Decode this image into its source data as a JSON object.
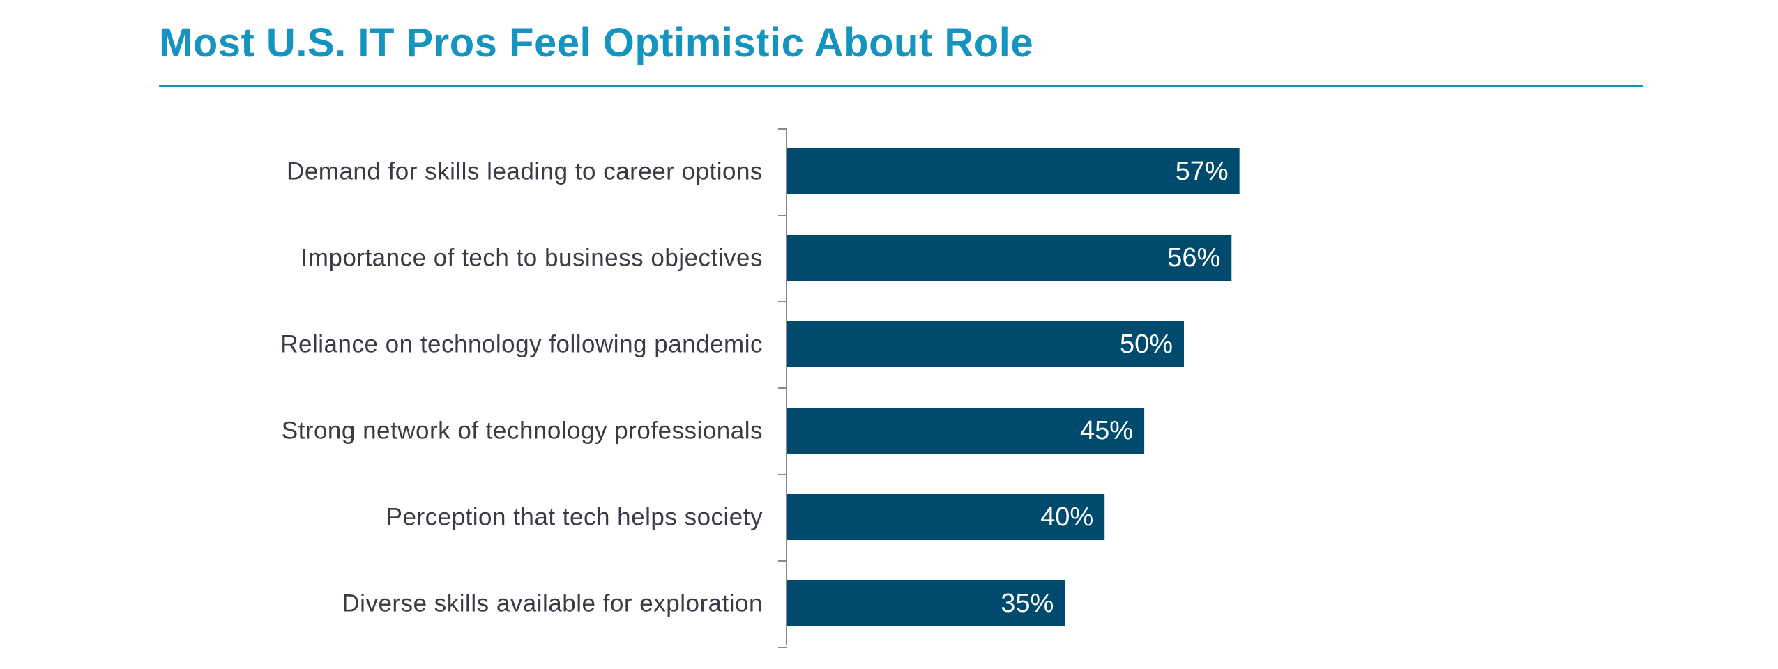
{
  "header": {
    "title": "Most U.S. IT Pros Feel Optimistic About Role"
  },
  "colors": {
    "title": "#1594c0",
    "bar": "#004a6d",
    "axis": "#8a8a8a",
    "label": "#3a3a46"
  },
  "chart_data": {
    "type": "bar",
    "orientation": "horizontal",
    "title": "Most U.S. IT Pros Feel Optimistic About Role",
    "xlabel": "",
    "ylabel": "",
    "categories": [
      "Demand for skills leading to career options",
      "Importance of tech to business objectives",
      "Reliance on technology following pandemic",
      "Strong network of technology professionals",
      "Perception that tech helps society",
      "Diverse skills available for exploration"
    ],
    "values": [
      57,
      56,
      50,
      45,
      40,
      35
    ],
    "value_labels": [
      "57%",
      "56%",
      "50%",
      "45%",
      "40%",
      "35%"
    ],
    "unit": "%",
    "xlim": [
      0,
      100
    ],
    "grid": false,
    "legend": "none"
  }
}
